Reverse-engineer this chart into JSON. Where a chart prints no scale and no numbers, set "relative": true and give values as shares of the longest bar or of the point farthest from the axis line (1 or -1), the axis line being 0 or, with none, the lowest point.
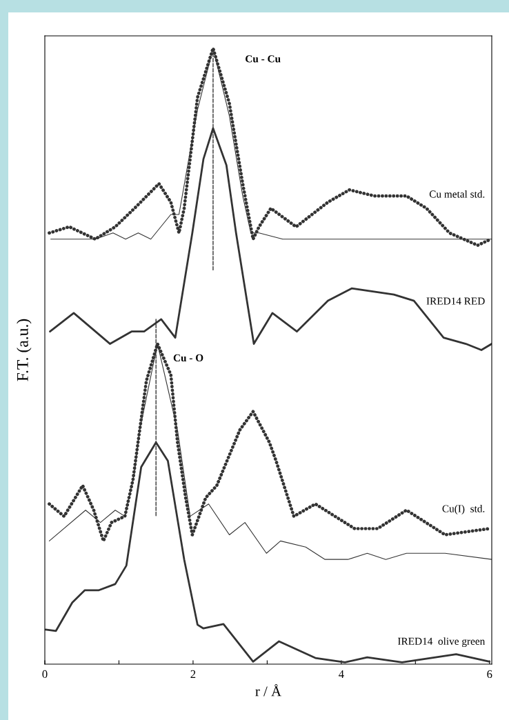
{
  "chart_data": {
    "type": "line",
    "relative": true,
    "xlabel": "r / Å",
    "ylabel": "F.T. (a.u.)",
    "xlim": [
      0,
      6.03
    ],
    "xticks": [
      0,
      {
        "value": 1,
        "label": null
      },
      2,
      {
        "value": 3,
        "label": null
      },
      4,
      {
        "value": 5,
        "label": null
      },
      6
    ],
    "grid": false,
    "legend": false,
    "tick_labels": "x",
    "series": [
      {
        "name": "Cu metal std.",
        "color": "#333333",
        "line_style": "dotted",
        "x": [
          0.06,
          0.33,
          0.68,
          0.95,
          1.21,
          1.54,
          1.7,
          1.81,
          1.88,
          2.06,
          2.27,
          2.49,
          2.67,
          2.81,
          2.89,
          3.05,
          3.39,
          3.82,
          4.11,
          4.45,
          4.88,
          5.15,
          5.46,
          5.84,
          6.02
        ],
        "values": [
          0.7,
          0.71,
          0.69,
          0.71,
          0.74,
          0.78,
          0.75,
          0.7,
          0.74,
          0.92,
          1.0,
          0.91,
          0.78,
          0.69,
          0.71,
          0.74,
          0.71,
          0.75,
          0.77,
          0.76,
          0.76,
          0.74,
          0.7,
          0.68,
          0.69
        ]
      },
      {
        "color": "#333333",
        "line_style": "solid",
        "x": [
          0.08,
          0.68,
          0.92,
          1.09,
          1.26,
          1.43,
          1.7,
          1.81,
          2.06,
          2.27,
          2.49,
          2.67,
          2.78,
          2.89,
          3.21,
          3.82,
          4.71,
          6.03
        ],
        "values": [
          0.69,
          0.69,
          0.7,
          0.69,
          0.7,
          0.69,
          0.73,
          0.73,
          0.9,
          1.0,
          0.89,
          0.76,
          0.7,
          0.7,
          0.69,
          0.69,
          0.69,
          0.69
        ]
      },
      {
        "name": "IRED14 RED",
        "color": "#333333",
        "line_style": "solid",
        "x": [
          0.07,
          0.39,
          0.88,
          1.17,
          1.34,
          1.57,
          1.76,
          1.99,
          2.14,
          2.27,
          2.45,
          2.58,
          2.82,
          3.07,
          3.4,
          3.82,
          4.14,
          4.71,
          4.98,
          5.38,
          5.68,
          5.89,
          6.03
        ],
        "values": [
          0.54,
          0.57,
          0.52,
          0.54,
          0.54,
          0.56,
          0.53,
          0.7,
          0.82,
          0.87,
          0.81,
          0.7,
          0.52,
          0.57,
          0.54,
          0.59,
          0.61,
          0.6,
          0.59,
          0.53,
          0.52,
          0.51,
          0.52
        ]
      },
      {
        "name": "Cu(I)  std.",
        "color": "#333333",
        "line_style": "dotted",
        "x": [
          0.06,
          0.26,
          0.51,
          0.66,
          0.79,
          0.9,
          1.08,
          1.19,
          1.28,
          1.37,
          1.52,
          1.7,
          1.79,
          1.9,
          1.99,
          2.17,
          2.32,
          2.63,
          2.81,
          3.03,
          3.12,
          3.36,
          3.65,
          4.18,
          4.49,
          4.88,
          5.4,
          6.0
        ],
        "values": [
          0.26,
          0.24,
          0.29,
          0.25,
          0.2,
          0.23,
          0.24,
          0.3,
          0.38,
          0.46,
          0.52,
          0.47,
          0.36,
          0.27,
          0.21,
          0.27,
          0.29,
          0.38,
          0.41,
          0.36,
          0.33,
          0.24,
          0.26,
          0.22,
          0.22,
          0.25,
          0.21,
          0.22
        ]
      },
      {
        "color": "#333333",
        "line_style": "solid",
        "x": [
          0.06,
          0.55,
          0.75,
          0.95,
          1.08,
          1.21,
          1.28,
          1.52,
          1.79,
          1.96,
          2.21,
          2.49,
          2.7,
          2.99,
          3.18,
          3.52,
          3.78,
          4.09,
          4.35,
          4.6,
          4.88,
          5.15,
          5.4,
          6.03
        ],
        "values": [
          0.2,
          0.25,
          0.23,
          0.25,
          0.24,
          0.31,
          0.38,
          0.52,
          0.38,
          0.24,
          0.26,
          0.21,
          0.23,
          0.18,
          0.2,
          0.19,
          0.17,
          0.17,
          0.18,
          0.17,
          0.18,
          0.18,
          0.18,
          0.17
        ]
      },
      {
        "name": "IRED14  olive green",
        "color": "#333333",
        "line_style": "solid",
        "x": [
          0.01,
          0.15,
          0.37,
          0.54,
          0.73,
          0.95,
          1.1,
          1.3,
          1.5,
          1.66,
          1.88,
          2.06,
          2.14,
          2.41,
          2.81,
          3.16,
          3.65,
          4.05,
          4.35,
          4.82,
          5.55,
          6.0
        ],
        "values": [
          0.056,
          0.054,
          0.1,
          0.12,
          0.12,
          0.13,
          0.16,
          0.32,
          0.36,
          0.33,
          0.17,
          0.064,
          0.058,
          0.065,
          0.004,
          0.037,
          0.01,
          0.003,
          0.011,
          0.003,
          0.016,
          0.004
        ]
      },
      {
        "color": "#333333",
        "line_style": "dashed",
        "x": [
          2.27,
          2.27
        ],
        "values": [
          1.0,
          0.64
        ]
      },
      {
        "color": "#333333",
        "line_style": "dashed",
        "x": [
          1.5,
          1.5
        ],
        "values": [
          0.56,
          0.24
        ]
      }
    ],
    "annotations": [
      "Cu - Cu",
      "Cu - O"
    ]
  }
}
